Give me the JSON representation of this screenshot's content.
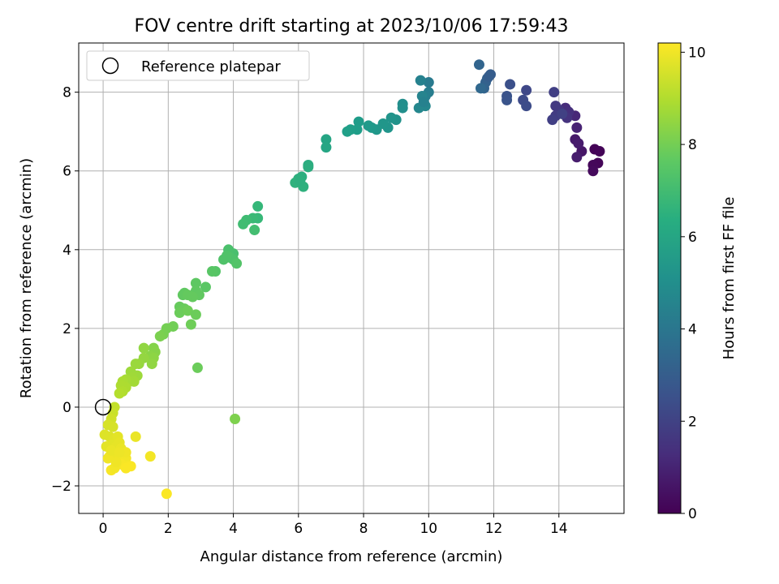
{
  "chart_data": {
    "type": "scatter",
    "title": "FOV centre drift starting at 2023/10/06 17:59:43",
    "xlabel": "Angular distance from reference (arcmin)",
    "ylabel": "Rotation from reference (arcmin)",
    "colorbar_label": "Hours from first FF file",
    "xlim": [
      -0.75,
      16.0
    ],
    "ylim": [
      -2.7,
      9.25
    ],
    "xticks": [
      0,
      2,
      4,
      6,
      8,
      10,
      12,
      14
    ],
    "yticks": [
      -2,
      0,
      2,
      4,
      6,
      8
    ],
    "colorbar_ticks": [
      0,
      2,
      4,
      6,
      8,
      10
    ],
    "colorbar_range": [
      0,
      10.2
    ],
    "colormap": "viridis",
    "grid": true,
    "legend": {
      "position": "top-left",
      "entries": [
        {
          "label": "Reference platepar",
          "marker": "hollow-circle"
        }
      ]
    },
    "reference_point": {
      "x": 0,
      "y": 0
    },
    "points": [
      {
        "x": 15.1,
        "y": 6.55,
        "c": 0.05
      },
      {
        "x": 15.25,
        "y": 6.5,
        "c": 0.1
      },
      {
        "x": 15.2,
        "y": 6.2,
        "c": 0.15
      },
      {
        "x": 15.05,
        "y": 6.15,
        "c": 0.2
      },
      {
        "x": 15.05,
        "y": 6.0,
        "c": 0.25
      },
      {
        "x": 14.7,
        "y": 6.5,
        "c": 0.6
      },
      {
        "x": 14.5,
        "y": 6.8,
        "c": 0.7
      },
      {
        "x": 14.6,
        "y": 6.7,
        "c": 0.75
      },
      {
        "x": 14.55,
        "y": 6.35,
        "c": 0.8
      },
      {
        "x": 14.55,
        "y": 7.1,
        "c": 1.0
      },
      {
        "x": 14.5,
        "y": 7.4,
        "c": 1.1
      },
      {
        "x": 14.2,
        "y": 7.6,
        "c": 1.3
      },
      {
        "x": 14.3,
        "y": 7.5,
        "c": 1.4
      },
      {
        "x": 14.25,
        "y": 7.35,
        "c": 1.5
      },
      {
        "x": 14.0,
        "y": 7.55,
        "c": 1.6
      },
      {
        "x": 13.9,
        "y": 7.65,
        "c": 1.7
      },
      {
        "x": 13.9,
        "y": 7.4,
        "c": 1.8
      },
      {
        "x": 13.8,
        "y": 7.3,
        "c": 1.9
      },
      {
        "x": 13.85,
        "y": 8.0,
        "c": 1.9
      },
      {
        "x": 14.1,
        "y": 7.45,
        "c": 1.95
      },
      {
        "x": 13.0,
        "y": 8.05,
        "c": 2.2
      },
      {
        "x": 12.9,
        "y": 7.8,
        "c": 2.3
      },
      {
        "x": 13.0,
        "y": 7.65,
        "c": 2.35
      },
      {
        "x": 12.5,
        "y": 8.2,
        "c": 2.5
      },
      {
        "x": 12.4,
        "y": 7.9,
        "c": 2.6
      },
      {
        "x": 12.4,
        "y": 7.8,
        "c": 2.65
      },
      {
        "x": 11.9,
        "y": 8.45,
        "c": 3.0
      },
      {
        "x": 11.8,
        "y": 8.35,
        "c": 3.1
      },
      {
        "x": 11.75,
        "y": 8.25,
        "c": 3.15
      },
      {
        "x": 11.7,
        "y": 8.1,
        "c": 3.2
      },
      {
        "x": 11.55,
        "y": 8.7,
        "c": 3.3
      },
      {
        "x": 11.6,
        "y": 8.1,
        "c": 3.4
      },
      {
        "x": 11.85,
        "y": 8.4,
        "c": 3.0
      },
      {
        "x": 10.0,
        "y": 8.25,
        "c": 4.2
      },
      {
        "x": 10.0,
        "y": 8.0,
        "c": 4.3
      },
      {
        "x": 9.9,
        "y": 7.9,
        "c": 4.4
      },
      {
        "x": 9.75,
        "y": 8.3,
        "c": 4.5
      },
      {
        "x": 9.8,
        "y": 7.9,
        "c": 4.6
      },
      {
        "x": 9.9,
        "y": 7.65,
        "c": 4.7
      },
      {
        "x": 9.7,
        "y": 7.6,
        "c": 4.75
      },
      {
        "x": 9.85,
        "y": 7.75,
        "c": 4.5
      },
      {
        "x": 9.2,
        "y": 7.7,
        "c": 5.0
      },
      {
        "x": 9.2,
        "y": 7.6,
        "c": 5.05
      },
      {
        "x": 9.0,
        "y": 7.3,
        "c": 5.2
      },
      {
        "x": 8.85,
        "y": 7.35,
        "c": 5.25
      },
      {
        "x": 8.75,
        "y": 7.1,
        "c": 5.3
      },
      {
        "x": 8.6,
        "y": 7.2,
        "c": 5.35
      },
      {
        "x": 8.4,
        "y": 7.05,
        "c": 5.4
      },
      {
        "x": 8.25,
        "y": 7.1,
        "c": 5.45
      },
      {
        "x": 7.85,
        "y": 7.25,
        "c": 5.6
      },
      {
        "x": 7.8,
        "y": 7.05,
        "c": 5.65
      },
      {
        "x": 7.6,
        "y": 7.05,
        "c": 5.7
      },
      {
        "x": 7.5,
        "y": 7.0,
        "c": 5.75
      },
      {
        "x": 8.15,
        "y": 7.15,
        "c": 5.5
      },
      {
        "x": 6.85,
        "y": 6.8,
        "c": 6.0
      },
      {
        "x": 6.85,
        "y": 6.6,
        "c": 6.05
      },
      {
        "x": 6.3,
        "y": 6.15,
        "c": 6.3
      },
      {
        "x": 6.3,
        "y": 6.1,
        "c": 6.35
      },
      {
        "x": 6.1,
        "y": 5.85,
        "c": 6.4
      },
      {
        "x": 6.0,
        "y": 5.8,
        "c": 6.45
      },
      {
        "x": 6.15,
        "y": 5.6,
        "c": 6.5
      },
      {
        "x": 5.9,
        "y": 5.7,
        "c": 6.55
      },
      {
        "x": 6.05,
        "y": 5.75,
        "c": 6.45
      },
      {
        "x": 4.75,
        "y": 5.1,
        "c": 6.8
      },
      {
        "x": 4.75,
        "y": 4.8,
        "c": 6.85
      },
      {
        "x": 4.6,
        "y": 4.8,
        "c": 6.9
      },
      {
        "x": 4.4,
        "y": 4.75,
        "c": 7.0
      },
      {
        "x": 4.3,
        "y": 4.65,
        "c": 7.05
      },
      {
        "x": 4.65,
        "y": 4.5,
        "c": 7.1
      },
      {
        "x": 4.0,
        "y": 3.9,
        "c": 7.2
      },
      {
        "x": 3.85,
        "y": 4.0,
        "c": 7.25
      },
      {
        "x": 3.9,
        "y": 3.8,
        "c": 7.3
      },
      {
        "x": 3.7,
        "y": 3.75,
        "c": 7.35
      },
      {
        "x": 4.0,
        "y": 3.75,
        "c": 7.3
      },
      {
        "x": 3.8,
        "y": 3.85,
        "c": 7.35
      },
      {
        "x": 4.1,
        "y": 3.65,
        "c": 7.4
      },
      {
        "x": 3.45,
        "y": 3.45,
        "c": 7.45
      },
      {
        "x": 3.35,
        "y": 3.45,
        "c": 7.5
      },
      {
        "x": 3.15,
        "y": 3.05,
        "c": 7.55
      },
      {
        "x": 2.85,
        "y": 3.15,
        "c": 7.6
      },
      {
        "x": 2.85,
        "y": 2.95,
        "c": 7.65
      },
      {
        "x": 2.95,
        "y": 2.85,
        "c": 7.7
      },
      {
        "x": 2.75,
        "y": 2.8,
        "c": 7.75
      },
      {
        "x": 2.5,
        "y": 2.9,
        "c": 7.65
      },
      {
        "x": 2.45,
        "y": 2.85,
        "c": 7.7
      },
      {
        "x": 2.6,
        "y": 2.85,
        "c": 7.75
      },
      {
        "x": 2.35,
        "y": 2.55,
        "c": 7.8
      },
      {
        "x": 2.5,
        "y": 2.5,
        "c": 7.85
      },
      {
        "x": 2.35,
        "y": 2.4,
        "c": 7.9
      },
      {
        "x": 2.6,
        "y": 2.45,
        "c": 7.95
      },
      {
        "x": 2.85,
        "y": 2.35,
        "c": 7.9
      },
      {
        "x": 2.7,
        "y": 2.1,
        "c": 7.95
      },
      {
        "x": 2.15,
        "y": 2.05,
        "c": 8.0
      },
      {
        "x": 1.95,
        "y": 2.0,
        "c": 8.05
      },
      {
        "x": 1.85,
        "y": 1.85,
        "c": 8.1
      },
      {
        "x": 1.75,
        "y": 1.8,
        "c": 8.15
      },
      {
        "x": 2.9,
        "y": 1.0,
        "c": 7.9
      },
      {
        "x": 4.05,
        "y": -0.3,
        "c": 8.2
      },
      {
        "x": 1.55,
        "y": 1.5,
        "c": 8.3
      },
      {
        "x": 1.6,
        "y": 1.4,
        "c": 8.35
      },
      {
        "x": 1.45,
        "y": 1.3,
        "c": 8.4
      },
      {
        "x": 1.55,
        "y": 1.25,
        "c": 8.45
      },
      {
        "x": 1.5,
        "y": 1.1,
        "c": 8.5
      },
      {
        "x": 1.25,
        "y": 1.5,
        "c": 8.5
      },
      {
        "x": 1.25,
        "y": 1.25,
        "c": 8.55
      },
      {
        "x": 1.1,
        "y": 1.1,
        "c": 8.6
      },
      {
        "x": 1.0,
        "y": 1.1,
        "c": 8.65
      },
      {
        "x": 1.05,
        "y": 0.8,
        "c": 8.7
      },
      {
        "x": 0.85,
        "y": 0.9,
        "c": 8.7
      },
      {
        "x": 0.9,
        "y": 0.75,
        "c": 8.75
      },
      {
        "x": 0.95,
        "y": 0.65,
        "c": 8.8
      },
      {
        "x": 0.8,
        "y": 0.65,
        "c": 8.8
      },
      {
        "x": 0.7,
        "y": 0.7,
        "c": 8.85
      },
      {
        "x": 0.6,
        "y": 0.65,
        "c": 8.9
      },
      {
        "x": 0.7,
        "y": 0.5,
        "c": 8.95
      },
      {
        "x": 0.55,
        "y": 0.55,
        "c": 8.95
      },
      {
        "x": 0.6,
        "y": 0.4,
        "c": 9.0
      },
      {
        "x": 0.5,
        "y": 0.35,
        "c": 9.05
      },
      {
        "x": 0.35,
        "y": 0.0,
        "c": 9.3
      },
      {
        "x": 0.3,
        "y": -0.15,
        "c": 9.4
      },
      {
        "x": 0.25,
        "y": -0.3,
        "c": 9.5
      },
      {
        "x": 0.15,
        "y": -0.45,
        "c": 9.6
      },
      {
        "x": 0.05,
        "y": -0.7,
        "c": 9.7
      },
      {
        "x": 0.3,
        "y": -0.5,
        "c": 9.6
      },
      {
        "x": 0.2,
        "y": -0.75,
        "c": 9.7
      },
      {
        "x": 0.35,
        "y": -0.8,
        "c": 9.75
      },
      {
        "x": 0.45,
        "y": -0.75,
        "c": 9.8
      },
      {
        "x": 0.3,
        "y": -0.95,
        "c": 9.8
      },
      {
        "x": 0.4,
        "y": -1.0,
        "c": 9.85
      },
      {
        "x": 0.5,
        "y": -0.9,
        "c": 9.85
      },
      {
        "x": 0.55,
        "y": -1.05,
        "c": 9.9
      },
      {
        "x": 0.6,
        "y": -1.15,
        "c": 9.9
      },
      {
        "x": 0.45,
        "y": -1.2,
        "c": 9.95
      },
      {
        "x": 0.35,
        "y": -1.3,
        "c": 9.95
      },
      {
        "x": 0.2,
        "y": -1.25,
        "c": 9.95
      },
      {
        "x": 0.15,
        "y": -1.3,
        "c": 10.0
      },
      {
        "x": 0.5,
        "y": -1.35,
        "c": 10.0
      },
      {
        "x": 0.6,
        "y": -1.4,
        "c": 10.05
      },
      {
        "x": 0.7,
        "y": -1.3,
        "c": 10.05
      },
      {
        "x": 0.75,
        "y": -1.5,
        "c": 10.1
      },
      {
        "x": 0.55,
        "y": -1.45,
        "c": 10.1
      },
      {
        "x": 0.85,
        "y": -1.5,
        "c": 10.15
      },
      {
        "x": 0.7,
        "y": -1.55,
        "c": 10.15
      },
      {
        "x": 0.25,
        "y": -1.6,
        "c": 10.1
      },
      {
        "x": 0.35,
        "y": -1.55,
        "c": 10.05
      },
      {
        "x": 0.7,
        "y": -1.15,
        "c": 10.0
      },
      {
        "x": 1.0,
        "y": -0.75,
        "c": 9.9
      },
      {
        "x": 1.45,
        "y": -1.25,
        "c": 10.05
      },
      {
        "x": 1.95,
        "y": -2.2,
        "c": 10.15
      },
      {
        "x": 0.1,
        "y": -1.0,
        "c": 9.8
      },
      {
        "x": 0.4,
        "y": -1.4,
        "c": 10.0
      },
      {
        "x": 0.25,
        "y": -1.1,
        "c": 9.9
      },
      {
        "x": 0.5,
        "y": -1.15,
        "c": 9.95
      }
    ]
  }
}
